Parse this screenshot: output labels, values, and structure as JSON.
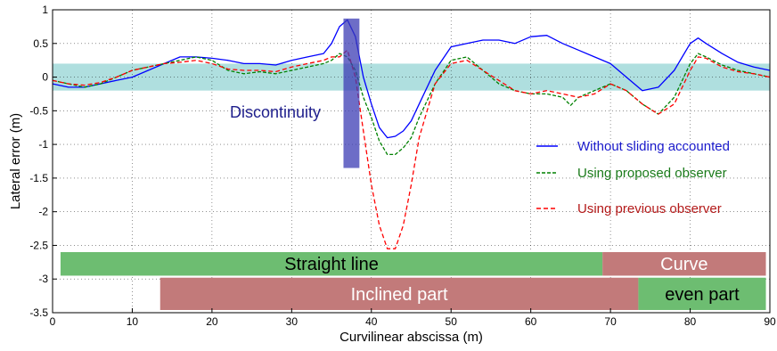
{
  "chart_data": {
    "type": "line",
    "title": "",
    "xlabel": "Curvilinear abscissa (m)",
    "ylabel": "Lateral error (m)",
    "xlim": [
      0,
      90
    ],
    "ylim": [
      -3.5,
      1
    ],
    "x_ticks": [
      0,
      10,
      20,
      30,
      40,
      50,
      60,
      70,
      80,
      90
    ],
    "y_ticks": [
      1,
      0.5,
      0,
      -0.5,
      -1,
      -1.5,
      -2,
      -2.5,
      -3,
      -3.5
    ],
    "grid": true,
    "legend_position": "right",
    "series": [
      {
        "name": "Without sliding accounted",
        "color": "#0000ff",
        "dash": "solid",
        "x": [
          0,
          2,
          4,
          6,
          8,
          10,
          12,
          14,
          16,
          18,
          20,
          22,
          24,
          26,
          28,
          30,
          32,
          34,
          35,
          36,
          37,
          38,
          39,
          40,
          41,
          42,
          43,
          44,
          45,
          46,
          48,
          50,
          52,
          54,
          56,
          58,
          60,
          62,
          64,
          66,
          68,
          70,
          72,
          74,
          76,
          78,
          80,
          81,
          82,
          84,
          86,
          88,
          90
        ],
        "y": [
          -0.1,
          -0.15,
          -0.15,
          -0.1,
          -0.05,
          0.0,
          0.1,
          0.2,
          0.3,
          0.3,
          0.28,
          0.25,
          0.2,
          0.2,
          0.18,
          0.25,
          0.3,
          0.35,
          0.5,
          0.75,
          0.85,
          0.6,
          0.0,
          -0.4,
          -0.75,
          -0.9,
          -0.88,
          -0.8,
          -0.65,
          -0.4,
          0.1,
          0.45,
          0.5,
          0.55,
          0.55,
          0.5,
          0.6,
          0.62,
          0.5,
          0.4,
          0.3,
          0.2,
          0.0,
          -0.2,
          -0.15,
          0.1,
          0.5,
          0.58,
          0.5,
          0.35,
          0.22,
          0.15,
          0.1
        ]
      },
      {
        "name": "Using proposed observer",
        "color": "#008000",
        "dash": "dotted",
        "x": [
          0,
          2,
          4,
          6,
          8,
          10,
          12,
          14,
          16,
          18,
          20,
          22,
          24,
          26,
          28,
          30,
          32,
          34,
          35,
          36,
          37,
          38,
          39,
          40,
          41,
          42,
          43,
          44,
          45,
          46,
          48,
          50,
          52,
          54,
          56,
          58,
          60,
          62,
          64,
          65,
          66,
          68,
          70,
          72,
          74,
          76,
          78,
          80,
          81,
          82,
          84,
          86,
          88,
          90
        ],
        "y": [
          -0.05,
          -0.1,
          -0.15,
          -0.1,
          0.0,
          0.1,
          0.15,
          0.2,
          0.25,
          0.3,
          0.25,
          0.1,
          0.05,
          0.08,
          0.05,
          0.1,
          0.15,
          0.2,
          0.25,
          0.35,
          0.3,
          0.1,
          -0.3,
          -0.6,
          -0.95,
          -1.15,
          -1.15,
          -1.05,
          -0.9,
          -0.6,
          -0.1,
          0.25,
          0.3,
          0.1,
          -0.1,
          -0.2,
          -0.25,
          -0.25,
          -0.3,
          -0.42,
          -0.3,
          -0.2,
          -0.1,
          -0.2,
          -0.4,
          -0.55,
          -0.3,
          0.2,
          0.35,
          0.3,
          0.18,
          0.1,
          0.05,
          0.0
        ]
      },
      {
        "name": "Using previous observer",
        "color": "#ff0000",
        "dash": "dashed",
        "x": [
          0,
          2,
          4,
          6,
          8,
          10,
          12,
          14,
          16,
          18,
          20,
          22,
          24,
          26,
          28,
          30,
          32,
          34,
          35,
          36,
          37,
          38,
          39,
          40,
          41,
          42,
          43,
          44,
          45,
          46,
          48,
          50,
          52,
          54,
          56,
          58,
          60,
          62,
          64,
          66,
          68,
          70,
          72,
          74,
          76,
          78,
          80,
          81,
          82,
          84,
          86,
          88,
          90
        ],
        "y": [
          -0.05,
          -0.1,
          -0.12,
          -0.08,
          0.0,
          0.1,
          0.15,
          0.2,
          0.22,
          0.25,
          0.2,
          0.12,
          0.1,
          0.1,
          0.08,
          0.15,
          0.2,
          0.25,
          0.3,
          0.3,
          0.4,
          0.0,
          -0.8,
          -1.6,
          -2.2,
          -2.55,
          -2.55,
          -2.2,
          -1.6,
          -0.9,
          -0.1,
          0.2,
          0.25,
          0.1,
          -0.05,
          -0.2,
          -0.25,
          -0.2,
          -0.25,
          -0.3,
          -0.25,
          -0.1,
          -0.2,
          -0.4,
          -0.55,
          -0.4,
          0.1,
          0.3,
          0.28,
          0.15,
          0.08,
          0.05,
          0.0
        ]
      }
    ],
    "annotations": {
      "tolerance_band": {
        "y_min": -0.2,
        "y_max": 0.2,
        "x_min": 0,
        "x_max": 90,
        "color": "#6ec5c5"
      },
      "discontinuity": {
        "label": "Discontinuity",
        "x_min": 36.5,
        "x_max": 38.5,
        "y_min": -1.35,
        "y_max": 0.87,
        "color": "#3c3cb4",
        "label_color": "#1e1e8c"
      },
      "segments": [
        {
          "label": "Straight line",
          "x_start": 1,
          "x_end": 69,
          "row": 1,
          "color": "#6dbd71",
          "text_color": "#000000"
        },
        {
          "label": "Curve",
          "x_start": 69,
          "x_end": 89.5,
          "row": 1,
          "color": "#c27a7a",
          "text_color": "#ffffff"
        },
        {
          "label": "Inclined part",
          "x_start": 13.5,
          "x_end": 73.5,
          "row": 2,
          "color": "#c27a7a",
          "text_color": "#ffffff"
        },
        {
          "label": "even part",
          "x_start": 73.5,
          "x_end": 89.5,
          "row": 2,
          "color": "#6dbd71",
          "text_color": "#000000"
        }
      ]
    }
  }
}
